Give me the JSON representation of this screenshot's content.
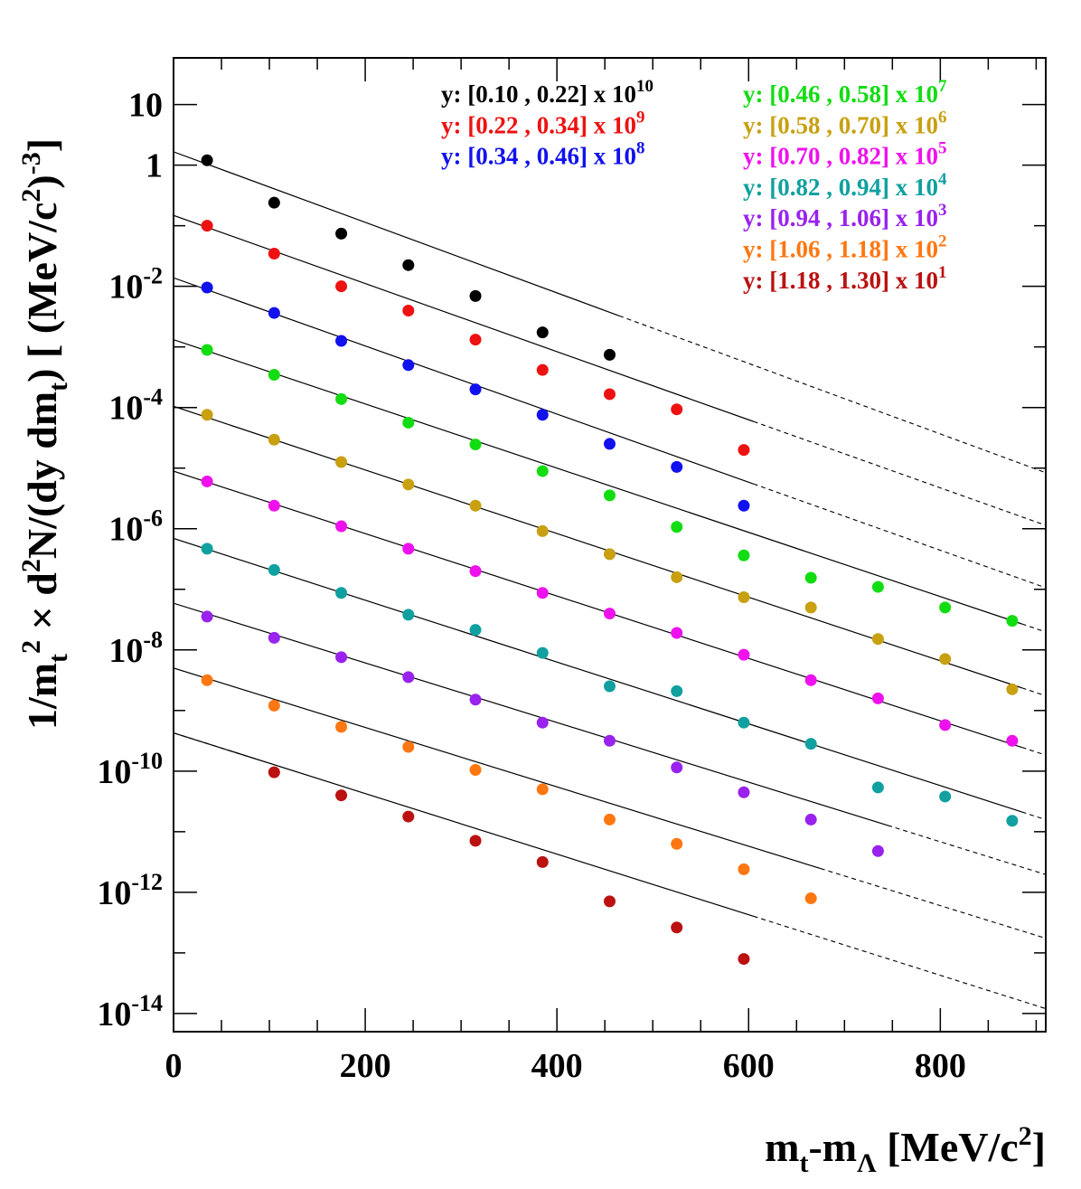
{
  "chart_data": {
    "type": "scatter",
    "title": "",
    "x_axis": {
      "label_parts": [
        "m",
        "t",
        "-m",
        "Λ",
        "  [MeV/c",
        "2",
        "]"
      ],
      "range": [
        0,
        910
      ],
      "ticks": [
        0,
        200,
        400,
        600,
        800
      ],
      "tick_labels": [
        "0",
        "200",
        "400",
        "600",
        "800"
      ]
    },
    "y_axis": {
      "scale": "log",
      "range_exp": [
        -14.3,
        1.77
      ],
      "label_parts": [
        "1/m",
        "t",
        "2",
        " × d",
        "2",
        "N/(dy dm",
        "t",
        ")  [ (MeV/c",
        "2",
        ")",
        "-3",
        "]"
      ],
      "ticks": [
        {
          "exp": 1,
          "base": "10",
          "sup": ""
        },
        {
          "exp": 0,
          "base": "1",
          "sup": ""
        },
        {
          "exp": -2,
          "base": "10",
          "sup": "-2"
        },
        {
          "exp": -4,
          "base": "10",
          "sup": "-4"
        },
        {
          "exp": -6,
          "base": "10",
          "sup": "-6"
        },
        {
          "exp": -8,
          "base": "10",
          "sup": "-8"
        },
        {
          "exp": -10,
          "base": "10",
          "sup": "-10"
        },
        {
          "exp": -12,
          "base": "10",
          "sup": "-12"
        },
        {
          "exp": -14,
          "base": "10",
          "sup": "-14"
        }
      ]
    },
    "x_points": [
      35,
      105,
      175,
      245,
      315,
      385,
      455,
      525,
      595,
      665,
      735,
      805,
      875
    ],
    "series": [
      {
        "name": "y: [0.10 , 0.22]",
        "scale_exp": "10",
        "color": "#000000",
        "fit_log10_at_0": 0.22,
        "fit_slope_per_MeV": -0.00582,
        "values_log10": [
          0.08,
          -0.62,
          -1.13,
          -1.65,
          -2.16,
          -2.76,
          -3.13,
          null,
          null,
          null,
          null,
          null,
          null
        ]
      },
      {
        "name": "y: [0.22 , 0.34]",
        "scale_exp": "9",
        "color": "#ee1111",
        "fit_log10_at_0": -0.83,
        "fit_slope_per_MeV": -0.00562,
        "values_log10": [
          -1.0,
          -1.46,
          -2.0,
          -2.4,
          -2.88,
          -3.38,
          -3.78,
          -4.03,
          -4.7,
          null,
          null,
          null,
          null
        ]
      },
      {
        "name": "y: [0.34 , 0.46]",
        "scale_exp": "8",
        "color": "#1111ee",
        "fit_log10_at_0": -1.86,
        "fit_slope_per_MeV": -0.00562,
        "values_log10": [
          -2.02,
          -2.44,
          -2.9,
          -3.3,
          -3.7,
          -4.12,
          -4.6,
          -4.98,
          -5.62,
          null,
          null,
          null,
          null
        ]
      },
      {
        "name": "y: [0.46 , 0.58]",
        "scale_exp": "7",
        "color": "#11dd11",
        "fit_log10_at_0": -2.88,
        "fit_slope_per_MeV": -0.0053,
        "values_log10": [
          -3.05,
          -3.46,
          -3.86,
          -4.25,
          -4.61,
          -5.05,
          -5.45,
          -5.97,
          -6.44,
          -6.81,
          -6.96,
          -7.3,
          -7.52
        ]
      },
      {
        "name": "y: [0.58 , 0.70]",
        "scale_exp": "6",
        "color": "#c8a010",
        "fit_log10_at_0": -3.98,
        "fit_slope_per_MeV": -0.00525,
        "values_log10": [
          -4.12,
          -4.53,
          -4.9,
          -5.27,
          -5.62,
          -6.04,
          -6.42,
          -6.8,
          -7.13,
          -7.3,
          -7.82,
          -8.15,
          -8.65
        ]
      },
      {
        "name": "y: [0.70 , 0.82]",
        "scale_exp": "5",
        "color": "#ee11ee",
        "fit_log10_at_0": -5.05,
        "fit_slope_per_MeV": -0.00515,
        "values_log10": [
          -5.22,
          -5.62,
          -5.96,
          -6.33,
          -6.7,
          -7.06,
          -7.4,
          -7.72,
          -8.08,
          -8.5,
          -8.8,
          -9.24,
          -9.5
        ]
      },
      {
        "name": "y: [0.82 , 0.94]",
        "scale_exp": "4",
        "color": "#10a0a0",
        "fit_log10_at_0": -6.16,
        "fit_slope_per_MeV": -0.0051,
        "values_log10": [
          -6.33,
          -6.68,
          -7.06,
          -7.42,
          -7.67,
          -8.05,
          -8.6,
          -8.68,
          -9.2,
          -9.55,
          -10.27,
          -10.42,
          -10.82
        ]
      },
      {
        "name": "y: [0.94 , 1.06]",
        "scale_exp": "3",
        "color": "#9922ee",
        "fit_log10_at_0": -7.23,
        "fit_slope_per_MeV": -0.00492,
        "values_log10": [
          -7.45,
          -7.8,
          -8.12,
          -8.45,
          -8.82,
          -9.2,
          -9.5,
          -9.94,
          -10.35,
          -10.8,
          -11.32,
          null,
          null
        ]
      },
      {
        "name": "y: [1.06 , 1.18]",
        "scale_exp": "2",
        "color": "#ff7711",
        "fit_log10_at_0": -8.3,
        "fit_slope_per_MeV": -0.0049,
        "values_log10": [
          -8.5,
          -8.92,
          -9.27,
          -9.6,
          -9.98,
          -10.3,
          -10.8,
          -11.2,
          -11.62,
          -12.1,
          null,
          null,
          null
        ]
      },
      {
        "name": "y: [1.18 , 1.30]",
        "scale_exp": "1",
        "color": "#bb1111",
        "fit_log10_at_0": -9.37,
        "fit_slope_per_MeV": -0.005,
        "values_log10": [
          null,
          -10.02,
          -10.4,
          -10.75,
          -11.15,
          -11.5,
          -12.15,
          -12.58,
          -13.1,
          null,
          null,
          null,
          null
        ]
      }
    ],
    "annotations": {
      "fit_lines": "solid within measured range, dashed extrapolation"
    }
  }
}
